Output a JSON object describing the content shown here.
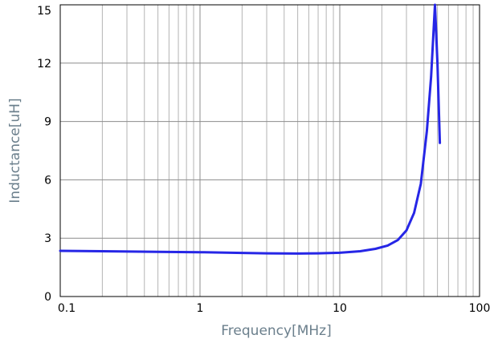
{
  "chart_data": {
    "type": "line",
    "xlabel": "Frequency[MHz]",
    "ylabel": "Inductance[uH]",
    "x_scale": "log",
    "xlim": [
      0.1,
      100
    ],
    "ylim": [
      0,
      15
    ],
    "x_ticks": [
      0.1,
      1,
      10,
      100
    ],
    "x_tick_labels": [
      "0.1",
      "1",
      "10",
      "100"
    ],
    "y_ticks": [
      0,
      3,
      6,
      9,
      12,
      15
    ],
    "y_tick_labels": [
      "0",
      "3",
      "6",
      "9",
      "12",
      "15"
    ],
    "grid": true,
    "colors": {
      "line": "#2626e6",
      "grid": "#b4b4b4",
      "axis_title": "#6b7f8c"
    },
    "series": [
      {
        "x": [
          0.1,
          0.2,
          0.5,
          1,
          2,
          3,
          5,
          7,
          10,
          14,
          18,
          22,
          26,
          30,
          34,
          38,
          42,
          45,
          48,
          50,
          52
        ],
        "y": [
          2.35,
          2.33,
          2.3,
          2.28,
          2.24,
          2.22,
          2.21,
          2.22,
          2.25,
          2.33,
          2.45,
          2.62,
          2.9,
          3.4,
          4.3,
          5.8,
          8.5,
          11.3,
          15.0,
          12.0,
          7.9
        ]
      }
    ]
  }
}
